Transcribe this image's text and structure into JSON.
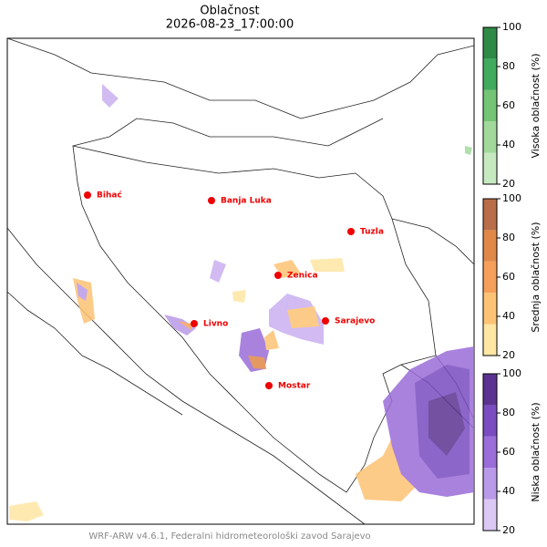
{
  "title": "Oblačnost",
  "subtitle": "2026-08-23_17:00:00",
  "cities": [
    {
      "name": "Bihać"
    },
    {
      "name": "Banja Luka"
    },
    {
      "name": "Tuzla"
    },
    {
      "name": "Zenica"
    },
    {
      "name": "Livno"
    },
    {
      "name": "Sarajevo"
    },
    {
      "name": "Mostar"
    }
  ],
  "colorbars": [
    {
      "label": "Visoka oblačnost (%)",
      "lim": [
        20,
        100
      ],
      "ticks": [
        20,
        40,
        60,
        80,
        100
      ],
      "colors": [
        "#c7e9c0",
        "#a1d99b",
        "#74c476",
        "#41ab5d",
        "#2f8a46"
      ]
    },
    {
      "label": "Srednja oblačnost (%)",
      "lim": [
        20,
        100
      ],
      "ticks": [
        20,
        40,
        60,
        80,
        100
      ],
      "colors": [
        "#fee6a3",
        "#fdc374",
        "#f5a05a",
        "#e08848",
        "#b86e48"
      ]
    },
    {
      "label": "Niska oblačnost (%)",
      "lim": [
        20,
        100
      ],
      "ticks": [
        20,
        40,
        60,
        80,
        100
      ],
      "colors": [
        "#dcc8f5",
        "#b99ae8",
        "#9b6dd9",
        "#7a4cc0",
        "#5c3391"
      ]
    }
  ],
  "footer": "WRF-ARW v4.6.1, Federalni hidrometeorološki zavod Sarajevo"
}
